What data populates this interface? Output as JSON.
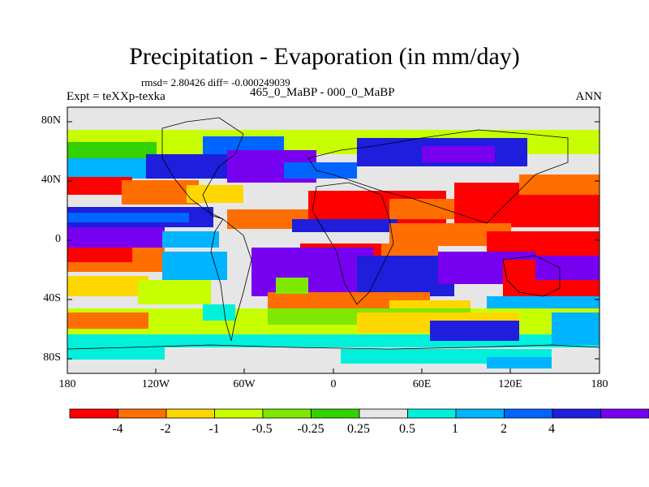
{
  "title": "Precipitation - Evaporation (in mm/day)",
  "stats": "rmsd= 2.80426 diff= -0.000249039",
  "experiment": "Expt = teXXp-texka",
  "comparison": "465_0_MaBP - 000_0_MaBP",
  "season": "ANN",
  "map": {
    "lat_labels": [
      "80N",
      "40N",
      "0",
      "40S",
      "80S"
    ],
    "lon_labels": [
      "180",
      "120W",
      "60W",
      "0",
      "60E",
      "120E",
      "180"
    ]
  },
  "colorbar": {
    "tick_labels": [
      "-4",
      "-2",
      "-1",
      "-0.5",
      "-0.25",
      "0.25",
      "0.5",
      "1",
      "2",
      "4"
    ],
    "colors": [
      "#ff0000",
      "#ff6e00",
      "#ffd700",
      "#c8ff00",
      "#7ee800",
      "#32d200",
      "#e6e6e6",
      "#00f0dc",
      "#00b4ff",
      "#0064ff",
      "#1e1edc",
      "#7800f0"
    ]
  }
}
